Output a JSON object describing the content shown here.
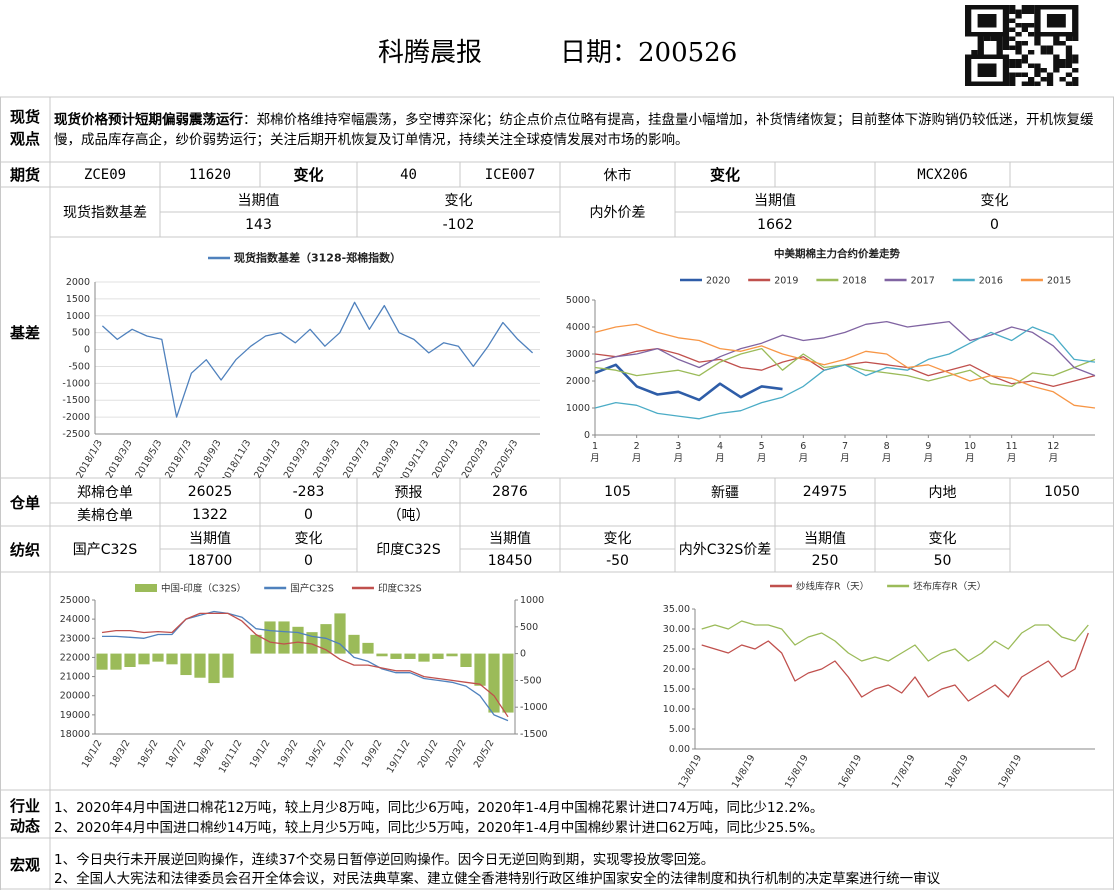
{
  "header": {
    "title": "科腾晨报",
    "date": "日期：200526"
  },
  "spot": {
    "label": [
      "现货",
      "观点"
    ],
    "lead": "现货价格预计短期偏弱震荡运行",
    "text": "：郑棉价格维持窄幅震荡，多空博弈深化；纺企点价点位略有提高，挂盘量小幅增加，补货情绪恢复；目前整体下游购销仍较低迷，开机恢复缓慢，成品库存高企，纱价弱势运行；关注后期开机恢复及订单情况，持续关注全球疫情发展对市场的影响。"
  },
  "futures": {
    "label": "期货",
    "cells": [
      "ZCE09",
      "11620",
      "变化",
      "40",
      "ICE007",
      "休市",
      "变化",
      "MCX206"
    ]
  },
  "basis": {
    "label": "基差",
    "spot_basis": {
      "name": "现货指数基差",
      "headers": [
        "当期值",
        "变化"
      ],
      "values": [
        "143",
        "-102"
      ]
    },
    "spread": {
      "name": "内外价差",
      "headers": [
        "当期值",
        "变化"
      ],
      "values": [
        "1662",
        "0"
      ]
    }
  },
  "warehouse": {
    "label": "仓单",
    "rows": [
      [
        "郑棉仓单",
        "26025",
        "-283",
        "预报",
        "2876",
        "105",
        "新疆",
        "24975",
        "内地",
        "1050"
      ],
      [
        "美棉仓单",
        "1322",
        "0",
        "（吨）"
      ]
    ]
  },
  "textile": {
    "label": "纺织",
    "groups": [
      {
        "name": "国产C32S",
        "headers": [
          "当期值",
          "变化"
        ],
        "values": [
          "18700",
          "0"
        ]
      },
      {
        "name": "印度C32S",
        "headers": [
          "当期值",
          "变化"
        ],
        "values": [
          "18450",
          "-50"
        ]
      },
      {
        "name": "内外C32S价差",
        "headers": [
          "当期值",
          "变化"
        ],
        "values": [
          "250",
          "50"
        ]
      }
    ]
  },
  "industry": {
    "label": [
      "行业",
      "动态"
    ],
    "lines": [
      "1、2020年4月中国进口棉花12万吨，较上月少8万吨，同比少6万吨，2020年1-4月中国棉花累计进口74万吨，同比少12.2%。",
      "2、2020年4月中国进口棉纱14万吨，较上月少5万吨，同比少5万吨，2020年1-4月中国棉纱累计进口62万吨，同比少25.5%。"
    ]
  },
  "macro": {
    "label": "宏观",
    "lines": [
      "1、今日央行未开展逆回购操作，连续37个交易日暂停逆回购操作。因今日无逆回购到期，实现零投放零回笼。",
      "2、全国人大宪法和法律委员会召开全体会议，对民法典草案、建立健全香港特别行政区维护国家安全的法律制度和执行机制的决定草案进行统一审议"
    ]
  },
  "chart_data": [
    {
      "type": "line",
      "legend": "top",
      "grid": true,
      "categories": [
        "2018/1/3",
        null,
        "2018/3/3",
        null,
        "2018/5/3",
        null,
        "2018/7/3",
        null,
        "2018/9/3",
        null,
        "2018/11/3",
        null,
        "2019/1/3",
        null,
        "2019/3/3",
        null,
        "2019/5/3",
        null,
        "2019/7/3",
        null,
        "2019/9/3",
        null,
        "2019/11/3",
        null,
        "2020/1/3",
        null,
        "2020/3/3",
        null,
        "2020/5/3",
        null
      ],
      "series": [
        {
          "name": "现货指数基差（3128-郑棉指数）",
          "color": "#4f81bd",
          "values": [
            700,
            300,
            600,
            400,
            300,
            -2000,
            -700,
            -300,
            -900,
            -300,
            100,
            400,
            500,
            200,
            600,
            100,
            500,
            1400,
            600,
            1300,
            500,
            300,
            -100,
            200,
            100,
            -500,
            100,
            800,
            300,
            -100
          ]
        }
      ],
      "ylim": [
        -2500,
        2000
      ],
      "yticks": [
        -2500,
        -2000,
        -1500,
        -1000,
        -500,
        0,
        500,
        1000,
        1500,
        2000
      ]
    },
    {
      "type": "line",
      "title": "中美期棉主力合约价差走势",
      "legend": "top",
      "grid": false,
      "x": [
        1,
        1.5,
        2,
        2.5,
        3,
        3.5,
        4,
        4.5,
        5,
        5.5,
        6,
        6.5,
        7,
        7.5,
        8,
        8.5,
        9,
        9.5,
        10,
        10.5,
        11,
        11.5,
        12,
        12.5,
        13
      ],
      "xlim": [
        1,
        13
      ],
      "xticks": [
        {
          "value": 1,
          "label": "1月"
        },
        {
          "value": 2,
          "label": "2月"
        },
        {
          "value": 3,
          "label": "3月"
        },
        {
          "value": 4,
          "label": "4月"
        },
        {
          "value": 5,
          "label": "5月"
        },
        {
          "value": 6,
          "label": "6月"
        },
        {
          "value": 7,
          "label": "7月"
        },
        {
          "value": 8,
          "label": "8月"
        },
        {
          "value": 9,
          "label": "9月"
        },
        {
          "value": 10,
          "label": "10月"
        },
        {
          "value": 11,
          "label": "11月"
        },
        {
          "value": 12,
          "label": "12月"
        }
      ],
      "series": [
        {
          "name": "2020",
          "color": "#2e5da8",
          "values": [
            2300,
            2600,
            1800,
            1500,
            1600,
            1300,
            1900,
            1400,
            1800,
            1700,
            null,
            null,
            null,
            null,
            null,
            null,
            null,
            null,
            null,
            null,
            null,
            null,
            null,
            null,
            null
          ]
        },
        {
          "name": "2019",
          "color": "#c0504d",
          "values": [
            3000,
            2900,
            3100,
            3200,
            3000,
            2700,
            2800,
            2500,
            2400,
            2700,
            2900,
            2400,
            2600,
            2700,
            2600,
            2500,
            2200,
            2400,
            2600,
            2200,
            1900,
            2000,
            1800,
            2000,
            2200
          ]
        },
        {
          "name": "2018",
          "color": "#9bbb59",
          "values": [
            2500,
            2400,
            2200,
            2300,
            2400,
            2200,
            2700,
            3000,
            3200,
            2400,
            3000,
            2500,
            2600,
            2400,
            2300,
            2200,
            2000,
            2200,
            2400,
            1900,
            1800,
            2300,
            2200,
            2500,
            2800
          ]
        },
        {
          "name": "2017",
          "color": "#8064a2",
          "values": [
            2700,
            2900,
            3000,
            3200,
            2800,
            2500,
            2900,
            3200,
            3400,
            3700,
            3500,
            3600,
            3800,
            4100,
            4200,
            4000,
            4100,
            4200,
            3500,
            3700,
            4000,
            3800,
            3300,
            2500,
            2200
          ]
        },
        {
          "name": "2016",
          "color": "#4bacc6",
          "values": [
            1000,
            1200,
            1100,
            800,
            700,
            600,
            800,
            900,
            1200,
            1400,
            1800,
            2400,
            2600,
            2200,
            2500,
            2400,
            2800,
            3000,
            3400,
            3800,
            3500,
            4000,
            3700,
            2800,
            2700
          ]
        },
        {
          "name": "2015",
          "color": "#f79646",
          "values": [
            3800,
            4000,
            4100,
            3800,
            3600,
            3500,
            3200,
            3100,
            3300,
            3000,
            2800,
            2600,
            2800,
            3100,
            3000,
            2500,
            2600,
            2300,
            2000,
            2200,
            2100,
            1800,
            1600,
            1100,
            1000
          ]
        }
      ],
      "ylim": [
        0,
        5000
      ],
      "yticks": [
        0,
        1000,
        2000,
        3000,
        4000,
        5000
      ]
    },
    {
      "type": "combo",
      "legend": "top",
      "grid": false,
      "categories": [
        "18/1/2",
        null,
        "18/3/2",
        null,
        "18/5/2",
        null,
        "18/7/2",
        null,
        "18/9/2",
        null,
        "18/11/2",
        null,
        "19/1/2",
        null,
        "19/3/2",
        null,
        "19/5/2",
        null,
        "19/7/2",
        null,
        "19/9/2",
        null,
        "19/11/2",
        null,
        "20/1/2",
        null,
        "20/3/2",
        null,
        "20/5/2",
        null
      ],
      "series": [
        {
          "name": "中国-印度（C32S）",
          "type": "bar",
          "axis": "y2",
          "color": "#9bbb59",
          "values": [
            -300,
            -300,
            -250,
            -200,
            -150,
            -200,
            -400,
            -450,
            -550,
            -450,
            0,
            350,
            600,
            600,
            500,
            400,
            550,
            750,
            350,
            200,
            -50,
            -100,
            -100,
            -150,
            -100,
            -50,
            -250,
            -600,
            -1100,
            -1100
          ]
        },
        {
          "name": "国产C32S",
          "type": "line",
          "color": "#4f81bd",
          "values": [
            23100,
            23100,
            23050,
            23000,
            23200,
            23200,
            24000,
            24200,
            24400,
            24300,
            24100,
            23500,
            23400,
            23350,
            23300,
            23100,
            23000,
            22700,
            22000,
            21800,
            21400,
            21200,
            21200,
            20900,
            20800,
            20700,
            20500,
            20000,
            19000,
            18700
          ]
        },
        {
          "name": "印度C32S",
          "type": "line",
          "color": "#c0504d",
          "values": [
            23300,
            23400,
            23400,
            23300,
            23350,
            23300,
            24000,
            24300,
            24300,
            24300,
            23900,
            23200,
            22800,
            22700,
            22800,
            22700,
            22400,
            21900,
            21600,
            21600,
            21450,
            21300,
            21300,
            21000,
            20900,
            20800,
            20700,
            20600,
            20000,
            18900
          ]
        }
      ],
      "ylim": [
        18000,
        25000
      ],
      "yticks": [
        18000,
        19000,
        20000,
        21000,
        22000,
        23000,
        24000,
        25000
      ],
      "y2lim": [
        -1500,
        1000
      ],
      "y2ticks": [
        -1500,
        -1000,
        -500,
        0,
        500,
        1000
      ]
    },
    {
      "type": "line",
      "legend": "top",
      "grid": false,
      "categories": [
        "13/8/19",
        null,
        null,
        null,
        "14/8/19",
        null,
        null,
        null,
        "15/8/19",
        null,
        null,
        null,
        "16/8/19",
        null,
        null,
        null,
        "17/8/19",
        null,
        null,
        null,
        "18/8/19",
        null,
        null,
        null,
        "19/8/19",
        null,
        null,
        null,
        null,
        null
      ],
      "series": [
        {
          "name": "纱线库存R（天）",
          "color": "#c0504d",
          "values": [
            26,
            25,
            24,
            26,
            25,
            27,
            24,
            17,
            19,
            20,
            22,
            18,
            13,
            15,
            16,
            14,
            18,
            13,
            15,
            16,
            12,
            14,
            16,
            13,
            18,
            20,
            22,
            18,
            20,
            29
          ]
        },
        {
          "name": "坯布库存R（天）",
          "color": "#9bbb59",
          "values": [
            30,
            31,
            30,
            32,
            31,
            31,
            30,
            26,
            28,
            29,
            27,
            24,
            22,
            23,
            22,
            24,
            26,
            22,
            24,
            25,
            22,
            24,
            27,
            25,
            29,
            31,
            31,
            28,
            27,
            31
          ]
        }
      ],
      "ylim": [
        0,
        35
      ],
      "yticks": [
        {
          "value": 0,
          "label": "0.00"
        },
        {
          "value": 5,
          "label": "5.00"
        },
        {
          "value": 10,
          "label": "10.00"
        },
        {
          "value": 15,
          "label": "15.00"
        },
        {
          "value": 20,
          "label": "20.00"
        },
        {
          "value": 25,
          "label": "25.00"
        },
        {
          "value": 30,
          "label": "30.00"
        },
        {
          "value": 35,
          "label": "35.00"
        }
      ]
    }
  ]
}
